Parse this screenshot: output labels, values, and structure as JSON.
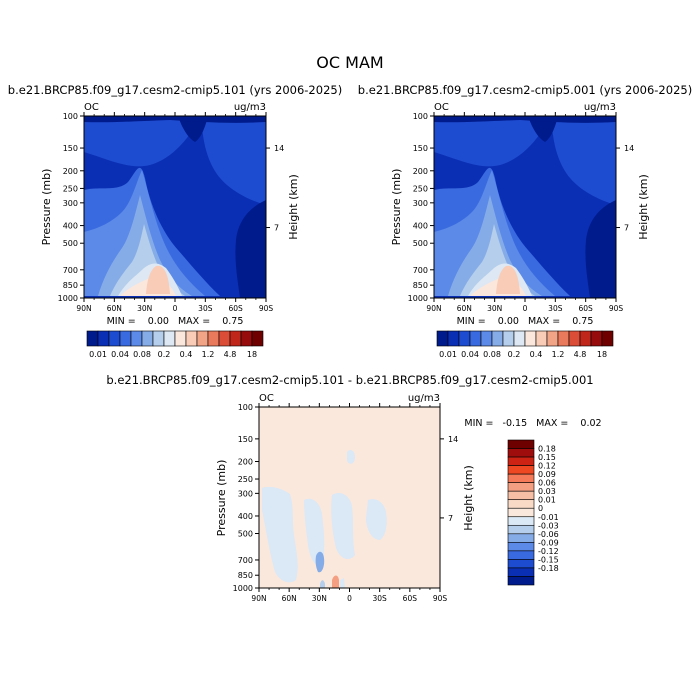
{
  "page_title": "OC MAM",
  "colors": {
    "cb_top": [
      "#001b8c",
      "#0a2fb4",
      "#1e4cd0",
      "#3a6ae0",
      "#5c8ae8",
      "#86ace8",
      "#b4ceec",
      "#dde8f4",
      "#fbe7dc",
      "#f8ccb6",
      "#f2a487",
      "#ea7a5c",
      "#dc4d37",
      "#c02619",
      "#960c0c",
      "#6e0000"
    ],
    "cb_diff": [
      "#6e0000",
      "#a00d0d",
      "#cc2314",
      "#ee4822",
      "#f47a5a",
      "#f49f82",
      "#f6bea5",
      "#f8dac6",
      "#fbe8dc",
      "#dbe8f6",
      "#b4ceec",
      "#86ace8",
      "#5c8ae8",
      "#3a6ae0",
      "#1e4cd0",
      "#0a2fb4",
      "#001b8c"
    ]
  },
  "panels": {
    "left": {
      "title": "b.e21.BRCP85.f09_g17.cesm2-cmip5.101 (yrs 2006-2025)",
      "left_label": "OC",
      "right_label": "ug/m3",
      "ylabel": "Pressure (mb)",
      "ylabel_right": "Height (km)",
      "minmax": "MIN =    0.00   MAX =    0.75"
    },
    "right": {
      "title": "b.e21.BRCP85.f09_g17.cesm2-cmip5.001 (yrs 2006-2025)",
      "left_label": "OC",
      "right_label": "ug/m3",
      "ylabel": "Pressure (mb)",
      "ylabel_right": "Height (km)",
      "minmax": "MIN =    0.00   MAX =    0.75"
    },
    "diff": {
      "title": "b.e21.BRCP85.f09_g17.cesm2-cmip5.101 - b.e21.BRCP85.f09_g17.cesm2-cmip5.001",
      "left_label": "OC",
      "right_label": "ug/m3",
      "ylabel": "Pressure (mb)",
      "ylabel_right": "Height (km)",
      "minmax": "MIN =   -0.15   MAX =    0.02"
    }
  },
  "chart_data": [
    {
      "type": "heatmap",
      "title": "b.e21.BRCP85.f09_g17.cesm2-cmip5.101 (yrs 2006-2025)",
      "ylabel": "Pressure (mb)",
      "ylabel_right": "Height (km)",
      "x_tick_labels": [
        "90N",
        "60N",
        "30N",
        "0",
        "30S",
        "60S",
        "90S"
      ],
      "y_tick_labels": [
        "100",
        "150",
        "200",
        "250",
        "300",
        "400",
        "500",
        "700",
        "850",
        "1000"
      ],
      "right_tick_labels": [
        "14",
        "7"
      ],
      "min": 0.0,
      "max": 0.75,
      "units": "ug/m3",
      "colorbar_labels": [
        "0.01",
        "0.04",
        "0.08",
        "0.2",
        "0.4",
        "1.2",
        "4.8",
        "18"
      ]
    },
    {
      "type": "heatmap",
      "title": "b.e21.BRCP85.f09_g17.cesm2-cmip5.001 (yrs 2006-2025)",
      "ylabel": "Pressure (mb)",
      "ylabel_right": "Height (km)",
      "x_tick_labels": [
        "90N",
        "60N",
        "30N",
        "0",
        "30S",
        "60S",
        "90S"
      ],
      "y_tick_labels": [
        "100",
        "150",
        "200",
        "250",
        "300",
        "400",
        "500",
        "700",
        "850",
        "1000"
      ],
      "right_tick_labels": [
        "14",
        "7"
      ],
      "min": 0.0,
      "max": 0.75,
      "units": "ug/m3",
      "colorbar_labels": [
        "0.01",
        "0.04",
        "0.08",
        "0.2",
        "0.4",
        "1.2",
        "4.8",
        "18"
      ]
    },
    {
      "type": "heatmap",
      "title": "b.e21.BRCP85.f09_g17.cesm2-cmip5.101 - b.e21.BRCP85.f09_g17.cesm2-cmip5.001",
      "ylabel": "Pressure (mb)",
      "ylabel_right": "Height (km)",
      "x_tick_labels": [
        "90N",
        "60N",
        "30N",
        "0",
        "30S",
        "60S",
        "90S"
      ],
      "y_tick_labels": [
        "100",
        "150",
        "200",
        "250",
        "300",
        "400",
        "500",
        "700",
        "850",
        "1000"
      ],
      "right_tick_labels": [
        "14",
        "7"
      ],
      "min": -0.15,
      "max": 0.02,
      "units": "ug/m3",
      "colorbar_labels": [
        "0.18",
        "0.15",
        "0.12",
        "0.09",
        "0.06",
        "0.03",
        "0.01",
        "0",
        "-0.01",
        "-0.03",
        "-0.06",
        "-0.09",
        "-0.12",
        "-0.15",
        "-0.18"
      ]
    }
  ]
}
